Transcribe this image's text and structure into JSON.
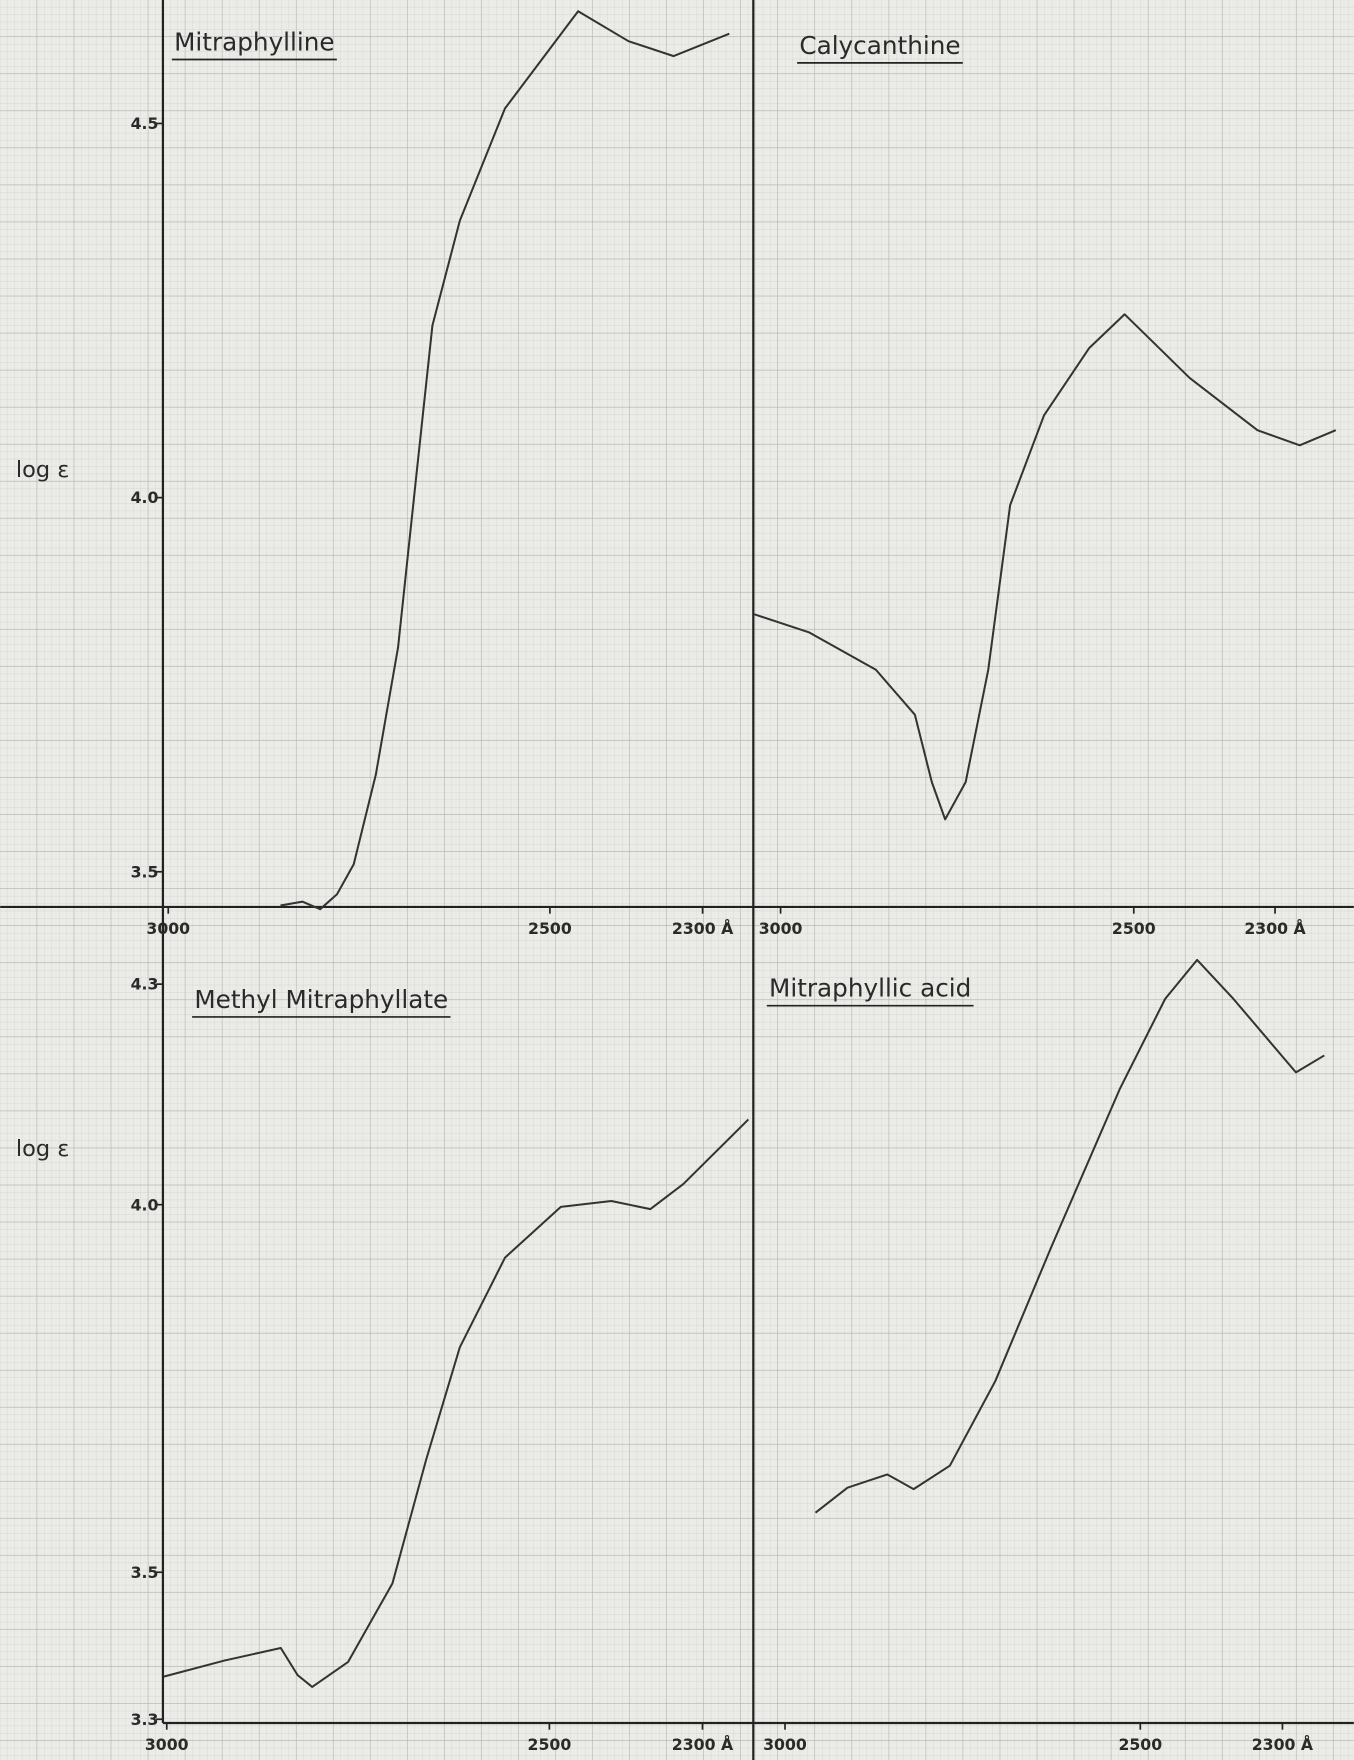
{
  "chart_data": [
    {
      "type": "line",
      "title": "Mitraphylline",
      "ylabel": "log ε",
      "color": "#333333",
      "x": [
        2853,
        2824,
        2801,
        2779,
        2757,
        2728,
        2699,
        2676,
        2654,
        2618,
        2559,
        2463,
        2397,
        2338,
        2265
      ],
      "values": [
        3.455,
        3.46,
        3.45,
        3.47,
        3.51,
        3.63,
        3.8,
        4.02,
        4.23,
        4.37,
        4.52,
        4.65,
        4.61,
        4.59,
        4.62
      ],
      "xlim": [
        3007,
        2235
      ],
      "ylim": [
        3.453,
        4.665
      ],
      "xticks": [
        3000,
        2500,
        {
          "value": 2300,
          "label": "2300 Å"
        }
      ],
      "yticks": [
        4.5,
        {
          "value": 4,
          "label": "4.0"
        },
        3.5
      ]
    },
    {
      "type": "line",
      "title": "Calycanthine",
      "color": "#333333",
      "x": [
        3037,
        2960,
        2865,
        2810,
        2786,
        2767,
        2738,
        2706,
        2675,
        2627,
        2563,
        2513,
        2421,
        2325,
        2265,
        2214
      ],
      "values": [
        3.844,
        3.82,
        3.77,
        3.71,
        3.62,
        3.57,
        3.62,
        3.77,
        3.99,
        4.11,
        4.2,
        4.245,
        4.16,
        4.09,
        4.07,
        4.09
      ],
      "xlim": [
        3037,
        2198
      ],
      "ylim": [
        3.453,
        4.665
      ],
      "xticks": [
        3000,
        2500,
        {
          "value": 2300,
          "label": "2300 Å"
        }
      ]
    },
    {
      "type": "line",
      "title": "Methyl Mitraphyllate",
      "ylabel": "log ε",
      "color": "#333333",
      "x": [
        3004,
        2924,
        2851,
        2829,
        2810,
        2763,
        2705,
        2661,
        2617,
        2558,
        2485,
        2419,
        2368,
        2325,
        2240
      ],
      "values": [
        3.358,
        3.38,
        3.397,
        3.36,
        3.344,
        3.378,
        3.485,
        3.653,
        3.806,
        3.928,
        3.997,
        4.005,
        3.994,
        4.028,
        4.116
      ],
      "xlim": [
        3005,
        2235
      ],
      "ylim": [
        3.295,
        4.405
      ],
      "xticks": [
        3000,
        2500,
        {
          "value": 2300,
          "label": "2300 Å"
        }
      ],
      "yticks": [
        4.3,
        {
          "value": 4,
          "label": "4.0"
        },
        3.5,
        3.3
      ]
    },
    {
      "type": "line",
      "title": "Mitraphyllic acid",
      "color": "#333333",
      "x": [
        2957,
        2912,
        2856,
        2819,
        2768,
        2704,
        2625,
        2529,
        2465,
        2420,
        2369,
        2281,
        2241
      ],
      "values": [
        3.581,
        3.615,
        3.633,
        3.613,
        3.645,
        3.76,
        3.943,
        4.157,
        4.28,
        4.333,
        4.28,
        4.18,
        4.203
      ],
      "xlim": [
        3043,
        2209
      ],
      "ylim": [
        3.295,
        4.405
      ],
      "xticks": [
        3000,
        2500,
        {
          "value": 2300,
          "label": "2300 Å"
        }
      ]
    }
  ]
}
